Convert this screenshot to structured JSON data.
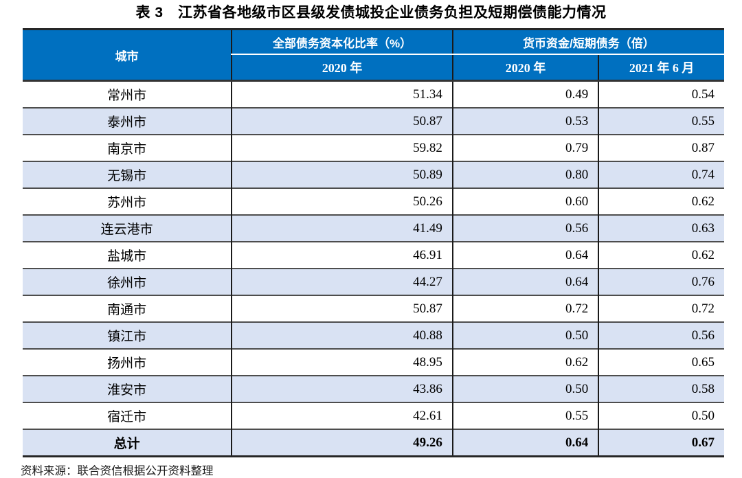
{
  "title": "表 3　江苏省各地级市区县级发债城投企业债务负担及短期偿债能力情况",
  "table": {
    "header": {
      "city": "城市",
      "debt_ratio_group": "全部债务资本化比率（%）",
      "debt_ratio_sub_2020": "2020 年",
      "cash_group": "货币资金/短期债务（倍）",
      "cash_sub_2020": "2020 年",
      "cash_sub_2021jun": "2021 年 6 月"
    },
    "rows": [
      {
        "city": "常州市",
        "debt_ratio_2020": "51.34",
        "cash_2020": "0.49",
        "cash_2021jun": "0.54"
      },
      {
        "city": "泰州市",
        "debt_ratio_2020": "50.87",
        "cash_2020": "0.53",
        "cash_2021jun": "0.55"
      },
      {
        "city": "南京市",
        "debt_ratio_2020": "59.82",
        "cash_2020": "0.79",
        "cash_2021jun": "0.87"
      },
      {
        "city": "无锡市",
        "debt_ratio_2020": "50.89",
        "cash_2020": "0.80",
        "cash_2021jun": "0.74"
      },
      {
        "city": "苏州市",
        "debt_ratio_2020": "50.26",
        "cash_2020": "0.60",
        "cash_2021jun": "0.62"
      },
      {
        "city": "连云港市",
        "debt_ratio_2020": "41.49",
        "cash_2020": "0.56",
        "cash_2021jun": "0.63"
      },
      {
        "city": "盐城市",
        "debt_ratio_2020": "46.91",
        "cash_2020": "0.64",
        "cash_2021jun": "0.62"
      },
      {
        "city": "徐州市",
        "debt_ratio_2020": "44.27",
        "cash_2020": "0.64",
        "cash_2021jun": "0.76"
      },
      {
        "city": "南通市",
        "debt_ratio_2020": "50.87",
        "cash_2020": "0.72",
        "cash_2021jun": "0.72"
      },
      {
        "city": "镇江市",
        "debt_ratio_2020": "40.88",
        "cash_2020": "0.50",
        "cash_2021jun": "0.56"
      },
      {
        "city": "扬州市",
        "debt_ratio_2020": "48.95",
        "cash_2020": "0.62",
        "cash_2021jun": "0.65"
      },
      {
        "city": "淮安市",
        "debt_ratio_2020": "43.86",
        "cash_2020": "0.50",
        "cash_2021jun": "0.58"
      },
      {
        "city": "宿迁市",
        "debt_ratio_2020": "42.61",
        "cash_2020": "0.55",
        "cash_2021jun": "0.50"
      }
    ],
    "total_row": {
      "city": "总计",
      "debt_ratio_2020": "49.26",
      "cash_2020": "0.64",
      "cash_2021jun": "0.67"
    }
  },
  "source_note": "资料来源：联合资信根据公开资料整理",
  "colors": {
    "header_bg": "#0070C0",
    "header_text": "#FFFFFF",
    "stripe_bg": "#D9E2F3",
    "row_border": "#4D4D4D",
    "column_border": "#1A1A1A"
  }
}
